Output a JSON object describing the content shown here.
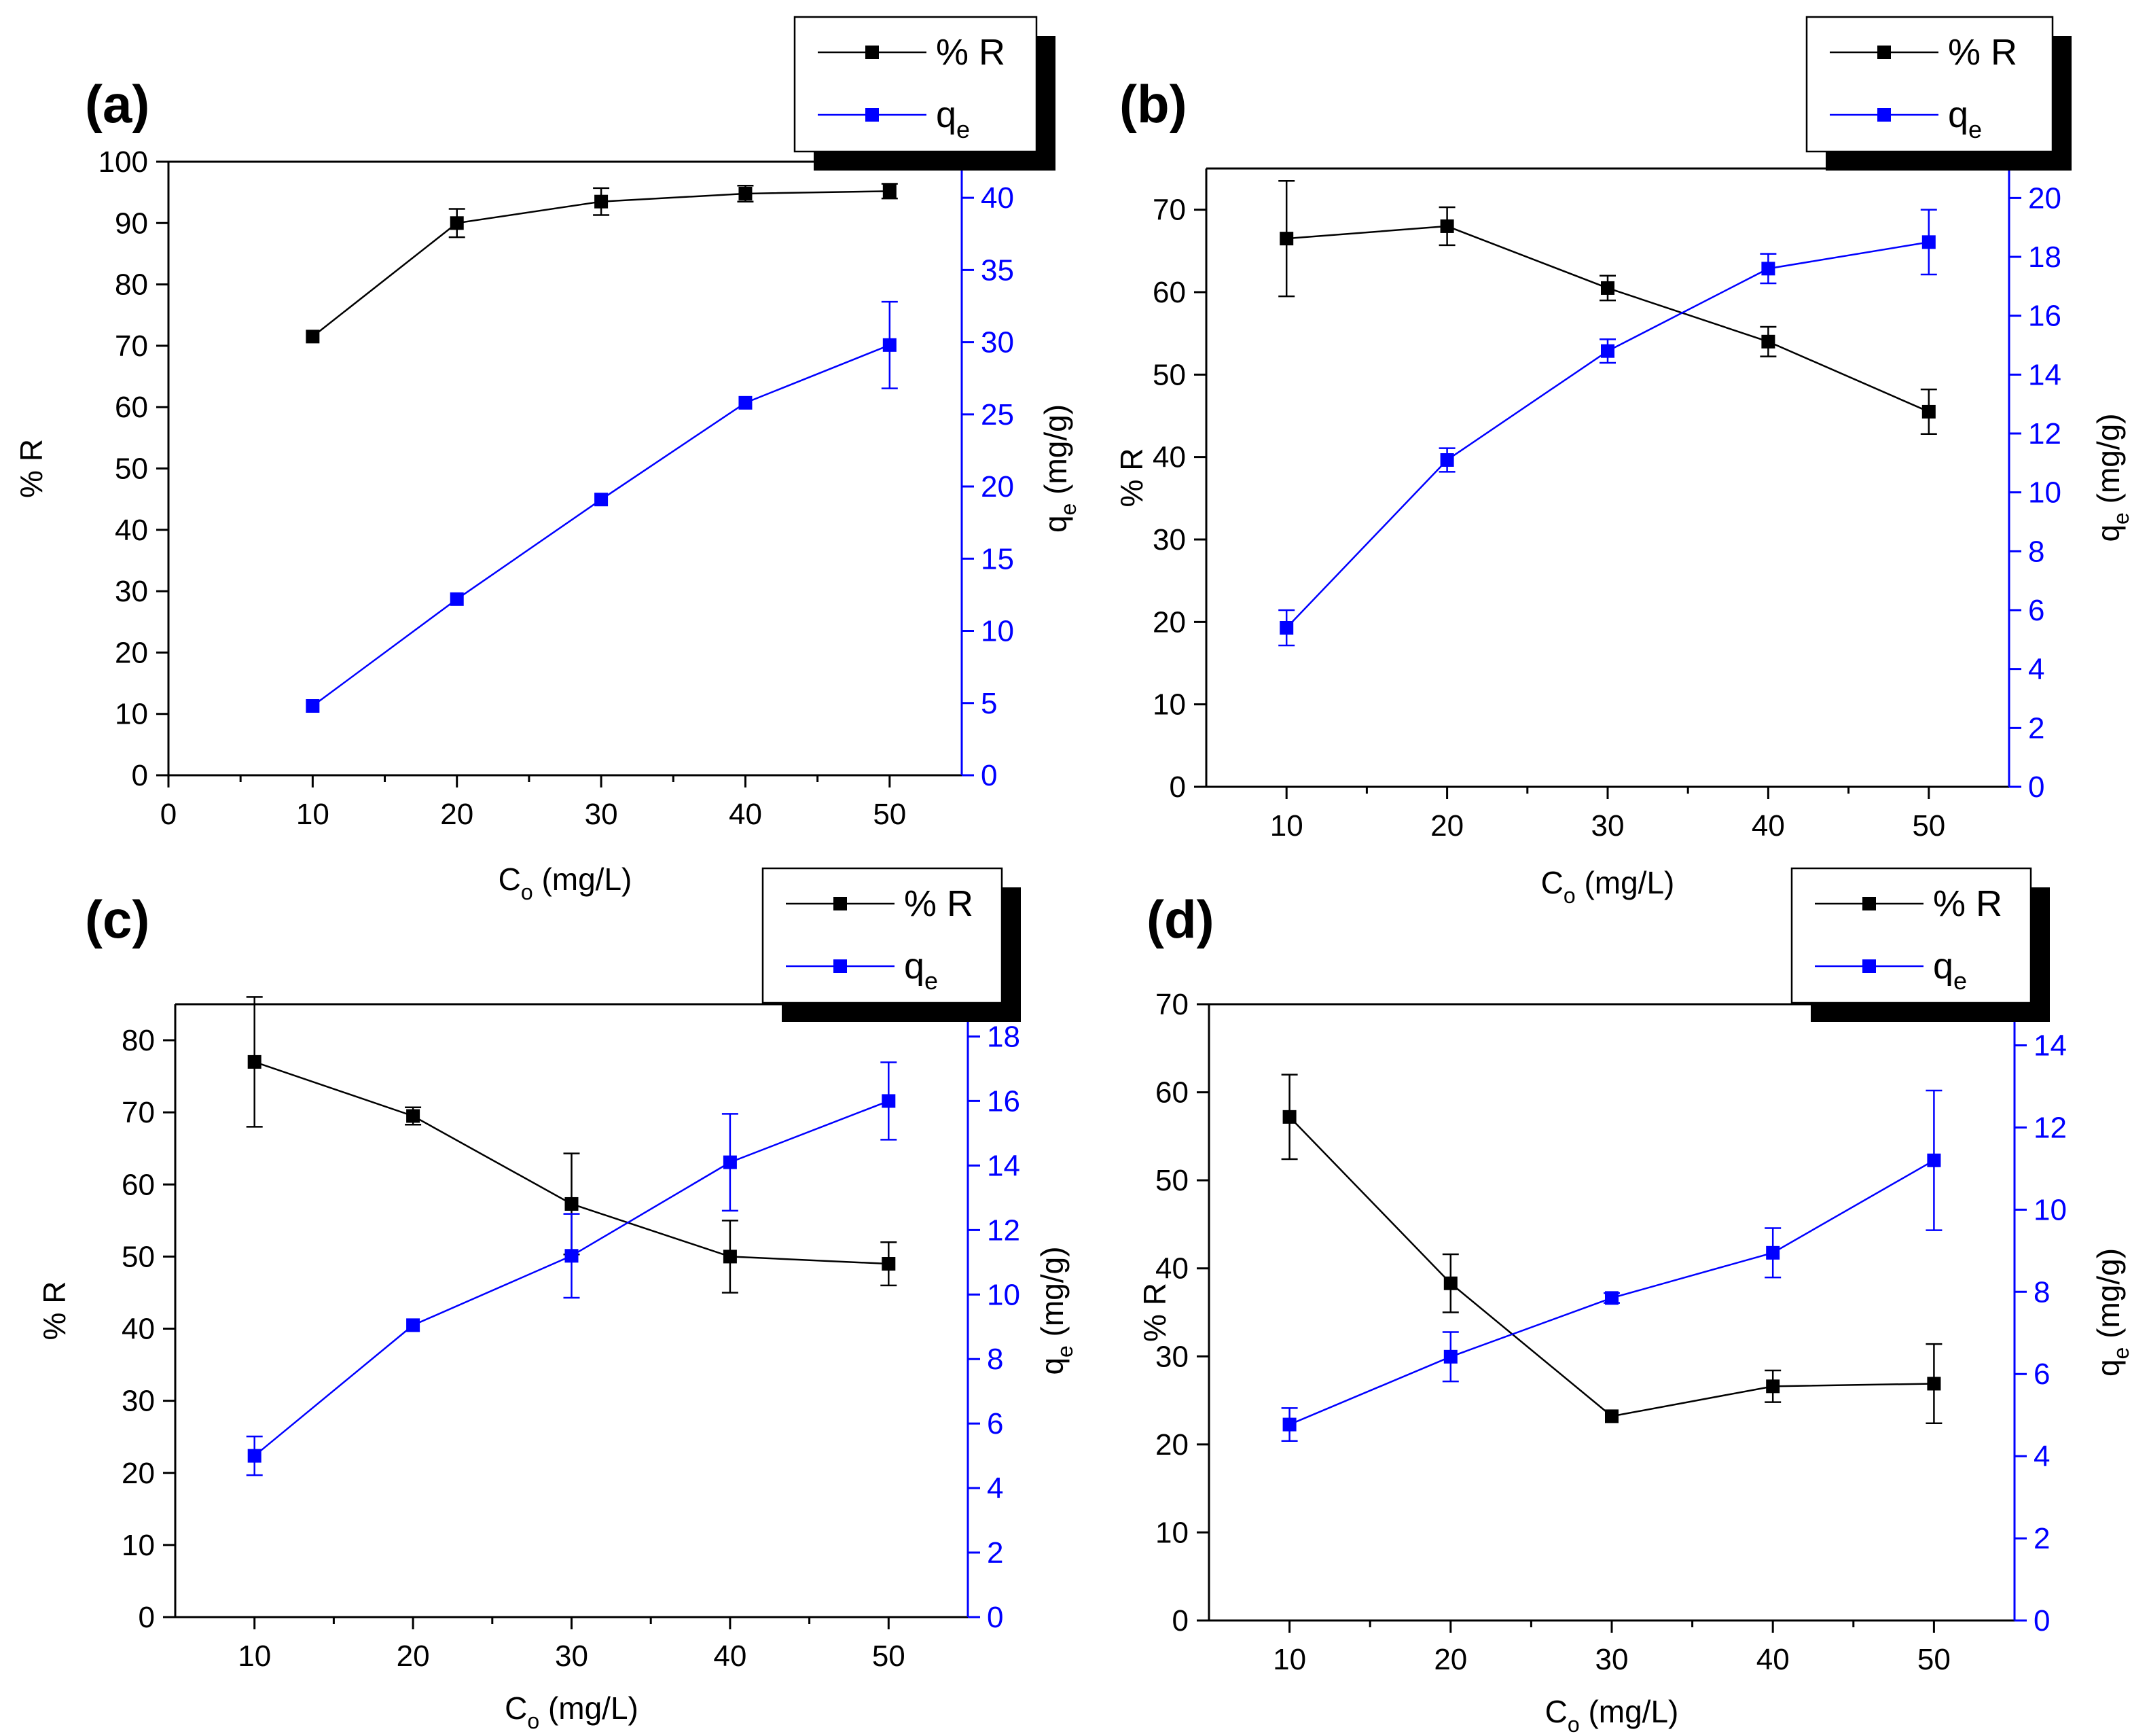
{
  "colors": {
    "r_series": "#000000",
    "qe_series": "#0000ff",
    "frame": "#000000",
    "background": "#ffffff"
  },
  "chart_data": [
    {
      "panel": "(a)",
      "type": "line",
      "xlabel_main": "C",
      "xlabel_sub": "o",
      "xlabel_unit": " (mg/L)",
      "ylabel_left": "% R",
      "ylabel_right_main": "q",
      "ylabel_right_sub": "e",
      "ylabel_right_unit": " (mg/g)",
      "xlim": [
        0,
        55
      ],
      "xticks": [
        0,
        10,
        20,
        30,
        40,
        50
      ],
      "ylim_left": [
        0,
        100
      ],
      "yticks_left": [
        0,
        10,
        20,
        30,
        40,
        50,
        60,
        70,
        80,
        90,
        100
      ],
      "ylim_right": [
        0,
        42.5
      ],
      "yticks_right": [
        0,
        5,
        10,
        15,
        20,
        25,
        30,
        35,
        40
      ],
      "legend": {
        "position": "top-right",
        "entries": [
          {
            "series": "r",
            "text": "% R",
            "sub": ""
          },
          {
            "series": "qe",
            "text": "q",
            "sub": "e"
          }
        ]
      },
      "series": [
        {
          "key": "r",
          "name": "% R",
          "axis": "left",
          "x": [
            10,
            20,
            30,
            40,
            50
          ],
          "values": [
            71.5,
            90,
            93.5,
            94.8,
            95.2
          ],
          "errors": [
            0,
            2.3,
            2.2,
            1.3,
            1.2
          ]
        },
        {
          "key": "qe",
          "name": "qe",
          "axis": "right",
          "x": [
            10,
            20,
            30,
            40,
            50
          ],
          "values": [
            4.8,
            12.2,
            19.1,
            25.8,
            29.8
          ],
          "errors": [
            0,
            0,
            0,
            0,
            3
          ]
        }
      ]
    },
    {
      "panel": "(b)",
      "type": "line",
      "xlabel_main": "C",
      "xlabel_sub": "o",
      "xlabel_unit": " (mg/L)",
      "ylabel_left": "% R",
      "ylabel_right_main": "q",
      "ylabel_right_sub": "e",
      "ylabel_right_unit": " (mg/g)",
      "xlim": [
        5,
        55
      ],
      "xticks": [
        10,
        20,
        30,
        40,
        50
      ],
      "ylim_left": [
        0,
        75
      ],
      "yticks_left": [
        0,
        10,
        20,
        30,
        40,
        50,
        60,
        70
      ],
      "ylim_right": [
        0,
        21
      ],
      "yticks_right": [
        0,
        2,
        4,
        6,
        8,
        10,
        12,
        14,
        16,
        18,
        20
      ],
      "legend": {
        "position": "top-right",
        "entries": [
          {
            "series": "r",
            "text": "% R",
            "sub": ""
          },
          {
            "series": "qe",
            "text": "q",
            "sub": "e"
          }
        ]
      },
      "series": [
        {
          "key": "r",
          "name": "% R",
          "axis": "left",
          "x": [
            10,
            20,
            30,
            40,
            50
          ],
          "values": [
            66.5,
            68,
            60.5,
            54,
            45.5
          ],
          "errors": [
            7,
            2.3,
            1.5,
            1.8,
            2.7
          ]
        },
        {
          "key": "qe",
          "name": "qe",
          "axis": "right",
          "x": [
            10,
            20,
            30,
            40,
            50
          ],
          "values": [
            5.4,
            11.1,
            14.8,
            17.6,
            18.5
          ],
          "errors": [
            0.6,
            0.4,
            0.4,
            0.5,
            1.1
          ]
        }
      ]
    },
    {
      "panel": "(c)",
      "type": "line",
      "xlabel_main": "C",
      "xlabel_sub": "o",
      "xlabel_unit": " (mg/L)",
      "ylabel_left": "% R",
      "ylabel_right_main": "q",
      "ylabel_right_sub": "e",
      "ylabel_right_unit": " (mg/g)",
      "xlim": [
        5,
        55
      ],
      "xticks": [
        10,
        20,
        30,
        40,
        50
      ],
      "ylim_left": [
        0,
        85
      ],
      "yticks_left": [
        0,
        10,
        20,
        30,
        40,
        50,
        60,
        70,
        80
      ],
      "ylim_right": [
        0,
        19
      ],
      "yticks_right": [
        0,
        2,
        4,
        6,
        8,
        10,
        12,
        14,
        16,
        18
      ],
      "legend": {
        "position": "top-right",
        "entries": [
          {
            "series": "r",
            "text": "% R",
            "sub": ""
          },
          {
            "series": "qe",
            "text": "q",
            "sub": "e"
          }
        ]
      },
      "series": [
        {
          "key": "r",
          "name": "% R",
          "axis": "left",
          "x": [
            10,
            20,
            30,
            40,
            50
          ],
          "values": [
            77,
            69.5,
            57.3,
            50,
            49
          ],
          "errors": [
            9,
            1.2,
            7,
            5,
            3
          ]
        },
        {
          "key": "qe",
          "name": "qe",
          "axis": "right",
          "x": [
            10,
            20,
            30,
            40,
            50
          ],
          "values": [
            5,
            9.05,
            11.2,
            14.1,
            16
          ],
          "errors": [
            0.6,
            0,
            1.3,
            1.5,
            1.2
          ]
        }
      ]
    },
    {
      "panel": "(d)",
      "type": "line",
      "xlabel_main": "C",
      "xlabel_sub": "o",
      "xlabel_unit": " (mg/L)",
      "ylabel_left": "% R",
      "ylabel_right_main": "q",
      "ylabel_right_sub": "e",
      "ylabel_right_unit": " (mg/g)",
      "xlim": [
        5,
        55
      ],
      "xticks": [
        10,
        20,
        30,
        40,
        50
      ],
      "ylim_left": [
        0,
        70
      ],
      "yticks_left": [
        0,
        10,
        20,
        30,
        40,
        50,
        60,
        70
      ],
      "ylim_right": [
        0,
        15
      ],
      "yticks_right": [
        0,
        2,
        4,
        6,
        8,
        10,
        12,
        14
      ],
      "legend": {
        "position": "top-right",
        "entries": [
          {
            "series": "r",
            "text": "% R",
            "sub": ""
          },
          {
            "series": "qe",
            "text": "q",
            "sub": "e"
          }
        ]
      },
      "series": [
        {
          "key": "r",
          "name": "% R",
          "axis": "left",
          "x": [
            10,
            20,
            30,
            40,
            50
          ],
          "values": [
            57.2,
            38.3,
            23.2,
            26.6,
            26.9
          ],
          "errors": [
            4.8,
            3.3,
            0,
            1.8,
            4.5
          ]
        },
        {
          "key": "qe",
          "name": "qe",
          "axis": "right",
          "x": [
            10,
            20,
            30,
            40,
            50
          ],
          "values": [
            4.77,
            6.42,
            7.85,
            8.95,
            11.2
          ],
          "errors": [
            0.4,
            0.6,
            0.12,
            0.6,
            1.7
          ]
        }
      ]
    }
  ]
}
